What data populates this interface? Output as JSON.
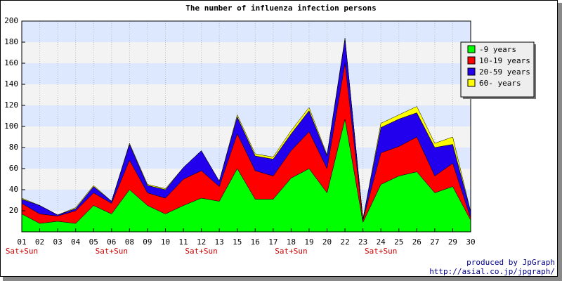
{
  "chart_data": {
    "type": "stacked_area",
    "title": "The number of influenza infection persons",
    "categories": [
      "01",
      "02",
      "03",
      "04",
      "05",
      "06",
      "08",
      "09",
      "10",
      "11",
      "12",
      "13",
      "15",
      "16",
      "17",
      "18",
      "19",
      "20",
      "22",
      "23",
      "24",
      "25",
      "26",
      "27",
      "29",
      "30"
    ],
    "notes": [
      "Sat+Sun",
      null,
      null,
      null,
      null,
      "Sat+Sun",
      null,
      null,
      null,
      null,
      "Sat+Sun",
      null,
      null,
      null,
      null,
      "Sat+Sun",
      null,
      null,
      null,
      null,
      "Sat+Sun",
      null,
      null,
      null,
      null,
      null
    ],
    "series": [
      {
        "name": "-9 years",
        "color": "#00ff00",
        "values": [
          17,
          8,
          10,
          8,
          25,
          17,
          40,
          25,
          17,
          25,
          32,
          29,
          60,
          31,
          31,
          51,
          60,
          37,
          107,
          9,
          45,
          53,
          57,
          37,
          43,
          11
        ]
      },
      {
        "name": "10-19 years",
        "color": "#ff0000",
        "values": [
          10,
          9,
          5,
          12,
          12,
          10,
          28,
          12,
          15,
          25,
          26,
          14,
          33,
          27,
          22,
          26,
          35,
          23,
          53,
          2,
          30,
          28,
          33,
          16,
          22,
          2
        ]
      },
      {
        "name": "20-59 years",
        "color": "#2200ee",
        "values": [
          4,
          8,
          1,
          2,
          6,
          2,
          15,
          7,
          8,
          11,
          19,
          5,
          16,
          14,
          16,
          16,
          20,
          12,
          23,
          1,
          24,
          26,
          23,
          27,
          18,
          6
        ]
      },
      {
        "name": "60- years",
        "color": "#ffff00",
        "values": [
          1,
          0,
          0,
          1,
          1,
          0,
          1,
          1,
          1,
          0,
          0,
          0,
          2,
          2,
          2,
          3,
          3,
          1,
          1,
          0,
          4,
          4,
          6,
          4,
          7,
          0
        ]
      }
    ],
    "ylim": [
      0,
      200
    ],
    "yticks": [
      20,
      40,
      60,
      80,
      100,
      120,
      140,
      160,
      180,
      200
    ],
    "grid": true,
    "legend": "top-right",
    "credits": [
      "produced by JpGraph",
      "http://asial.co.jp/jpgraph/"
    ]
  }
}
